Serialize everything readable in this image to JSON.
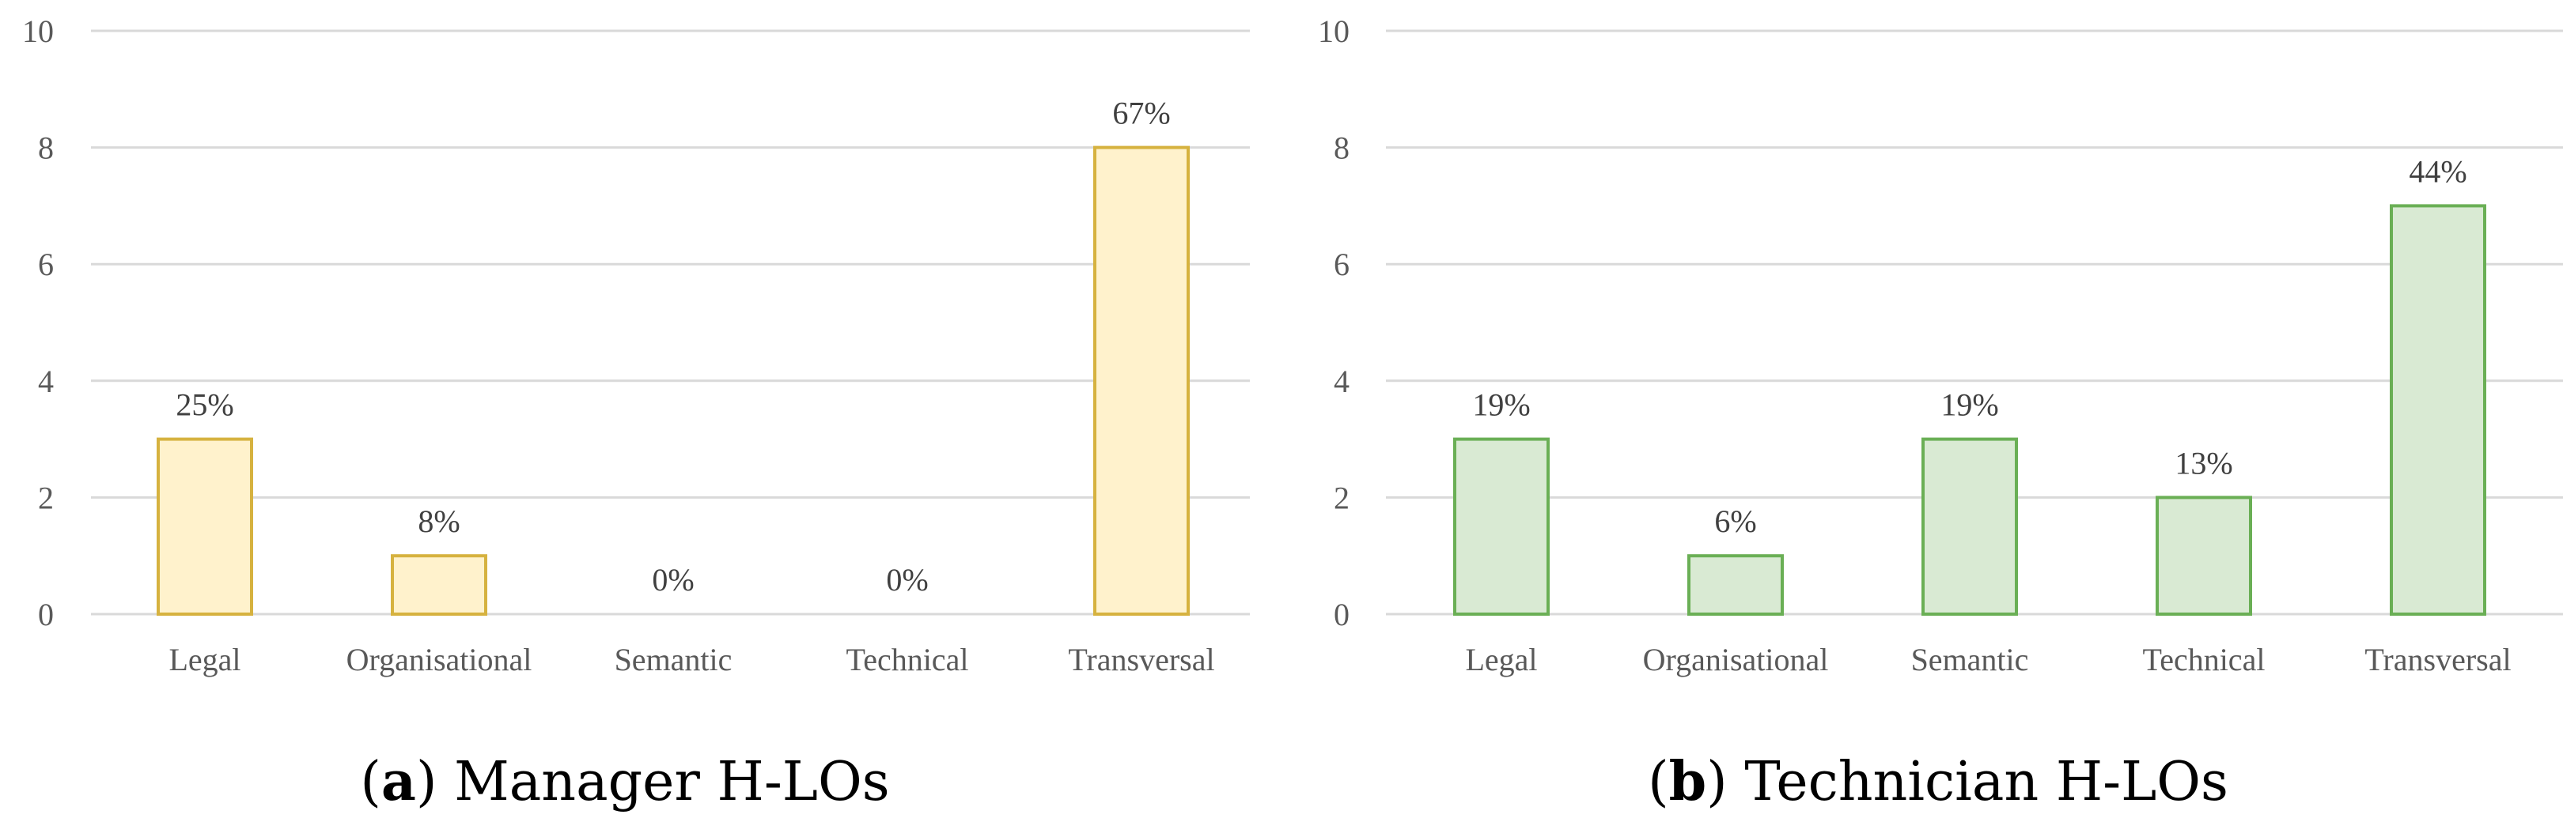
{
  "chart_data": [
    {
      "type": "bar",
      "caption_letter": "a",
      "caption_text": "Manager H-LOs",
      "categories": [
        "Legal",
        "Organisational",
        "Semantic",
        "Technical",
        "Transversal"
      ],
      "values": [
        3,
        1,
        0,
        0,
        8
      ],
      "data_labels": [
        "25%",
        "8%",
        "0%",
        "0%",
        "67%"
      ],
      "ylim": [
        0,
        10
      ],
      "yticks": [
        0,
        2,
        4,
        6,
        8,
        10
      ],
      "grid": true,
      "bar_fill": "#FFF2CC",
      "bar_stroke": "#D6B23F"
    },
    {
      "type": "bar",
      "caption_letter": "b",
      "caption_text": "Technician H-LOs",
      "categories": [
        "Legal",
        "Organisational",
        "Semantic",
        "Technical",
        "Transversal"
      ],
      "values": [
        3,
        1,
        3,
        2,
        7
      ],
      "data_labels": [
        "19%",
        "6%",
        "19%",
        "13%",
        "44%"
      ],
      "ylim": [
        0,
        10
      ],
      "yticks": [
        0,
        2,
        4,
        6,
        8,
        10
      ],
      "grid": true,
      "bar_fill": "#D9EAD3",
      "bar_stroke": "#6AAF55"
    }
  ]
}
